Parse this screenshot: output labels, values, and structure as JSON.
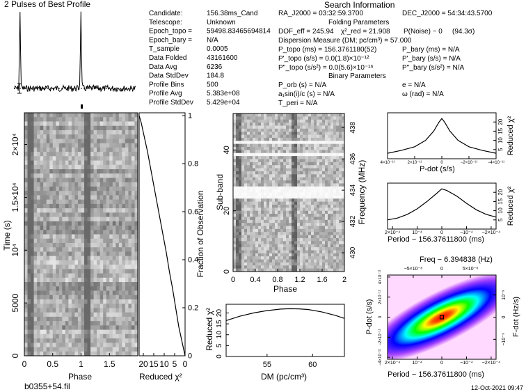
{
  "title": "2 Pulses of Best Profile",
  "search_title": "Search Information",
  "footer_left": "b0355+54.fil",
  "footer_right": "12-Oct-2021 09:47",
  "info_left": [
    {
      "label": "Candidate:",
      "value": "156.38ms_Cand"
    },
    {
      "label": "Telescope:",
      "value": "Unknown"
    },
    {
      "label": "Epoch_topo =",
      "value": "59498.83465694814"
    },
    {
      "label": "Epoch_bary =",
      "value": "N/A"
    },
    {
      "label": "T_sample",
      "value": "0.0005"
    },
    {
      "label": "Data Folded",
      "value": "43161600"
    },
    {
      "label": "Data Avg",
      "value": "6236"
    },
    {
      "label": "Data StdDev",
      "value": "184.8"
    },
    {
      "label": "Profile Bins",
      "value": "500"
    },
    {
      "label": "Profile Avg",
      "value": "5.383e+08"
    },
    {
      "label": "Profile StdDev",
      "value": "5.429e+04"
    }
  ],
  "info_right": {
    "ra": "RA_J2000 = 03:32:59.3700",
    "dec": "DEC_J2000 = 54:34:43.5700",
    "folding_header": "Folding Parameters",
    "dof": "DOF_eff = 245.94",
    "chi_red": "χ²_red = 21.908",
    "pnoise": "P(Noise) ~ 0",
    "sigma": "(94.3σ)",
    "dm": "Dispersion Measure (DM; pc/cm³) = 57.000",
    "p_topo": "P_topo (ms) = 156.3761180(52)",
    "p_bary": "P_bary (ms) = N/A",
    "pdot_topo": "P'_topo (s/s) = 0.0(1.8)×10⁻¹²",
    "pdot_bary": "P'_bary (s/s) = N/A",
    "pddot_topo": "P''_topo (s/s²) = 0.0(5.6)×10⁻¹⁶",
    "pddot_bary": "P''_bary (s/s²) = N/A",
    "binary_header": "Binary Parameters",
    "porb": "P_orb (s) = N/A",
    "ecc": "e = N/A",
    "asini": "a₁sin(i)/c (s) = N/A",
    "omega": "ω (rad) = N/A",
    "tperi": "T_peri = N/A"
  },
  "chart_data": [
    {
      "id": "profile",
      "type": "line",
      "title": "2 Pulses of Best Profile",
      "x_range": [
        0,
        2
      ],
      "peaks_at_phase": [
        0.1,
        1.1
      ],
      "grid": false
    },
    {
      "id": "time_phase",
      "type": "heatmap",
      "xlabel": "Phase",
      "ylabel": "Time (s)",
      "x_ticks": [
        "0",
        "0.5",
        "1",
        "1.5"
      ],
      "x_tick_values": [
        0,
        0.5,
        1,
        1.5
      ],
      "y_ticks": [
        "0",
        "5000",
        "10⁴",
        "1.5×10⁴",
        "2×10⁴"
      ],
      "y_tick_values": [
        0,
        5000,
        10000,
        15000,
        20000
      ],
      "x_range": [
        0,
        2
      ],
      "y_range": [
        0,
        23000
      ]
    },
    {
      "id": "time_chi2",
      "type": "line",
      "xlabel": "Reduced χ²",
      "ylabel": "Fraction of Observation",
      "x_ticks": [
        "20",
        "15",
        "10",
        "5",
        "0"
      ],
      "x_tick_values": [
        20,
        15,
        10,
        5,
        0
      ],
      "y_ticks": [
        "0",
        "0.2",
        "0.4",
        "0.6",
        "0.8",
        "1"
      ],
      "y_tick_values": [
        0,
        0.2,
        0.4,
        0.6,
        0.8,
        1.0
      ],
      "x_range": [
        22,
        0
      ],
      "y_range": [
        0,
        1
      ],
      "x": [
        0,
        1.5,
        3,
        4.5,
        6,
        7.5,
        9,
        10.5,
        12,
        13.5,
        15,
        16.5,
        18,
        19.5,
        21,
        22
      ],
      "y": [
        0,
        0.06,
        0.12,
        0.2,
        0.28,
        0.35,
        0.43,
        0.5,
        0.57,
        0.64,
        0.71,
        0.78,
        0.85,
        0.91,
        0.97,
        1.0
      ]
    },
    {
      "id": "subband_phase",
      "type": "heatmap",
      "xlabel": "Phase",
      "ylabel": "Sub-band",
      "y2label": "Frequency (MHz)",
      "x_ticks": [
        "0",
        "0.4",
        "0.8",
        "1.2",
        "1.6",
        "2"
      ],
      "x_tick_values": [
        0,
        0.4,
        0.8,
        1.2,
        1.6,
        2
      ],
      "y_ticks": [
        "0",
        "20",
        "40"
      ],
      "y_tick_values": [
        0,
        20,
        40
      ],
      "y2_ticks": [
        "430",
        "432",
        "434",
        "436",
        "438"
      ],
      "y2_tick_values": [
        430,
        432,
        434,
        436,
        438
      ],
      "x_range": [
        0,
        2
      ],
      "y_range": [
        0,
        52
      ],
      "y2_range": [
        428.8,
        438.9
      ]
    },
    {
      "id": "dm_chi2",
      "type": "line",
      "xlabel": "DM (pc/cm³)",
      "ylabel": "Reduced χ²",
      "x_ticks": [
        "55",
        "60"
      ],
      "x_tick_values": [
        55,
        60
      ],
      "y_ticks": [
        "0",
        "5",
        "10",
        "15",
        "20"
      ],
      "y_tick_values": [
        0,
        5,
        10,
        15,
        20
      ],
      "x_range": [
        50.5,
        63.5
      ],
      "y_range": [
        0,
        24
      ],
      "x": [
        50.5,
        52,
        53.5,
        55,
        56.5,
        57.5,
        58.5,
        59.5,
        61,
        62.5,
        63.5
      ],
      "y": [
        16.5,
        18.5,
        20.0,
        21.1,
        21.8,
        21.95,
        21.9,
        21.6,
        20.5,
        18.9,
        17.5
      ]
    },
    {
      "id": "pdot_chi2",
      "type": "line",
      "xlabel": "P-dot (s/s)",
      "ylabel": "Reduced χ²",
      "x_ticks": [
        "4×10⁻¹¹",
        "2×10⁻¹¹",
        "0",
        "−2×10⁻¹¹",
        "−4×10⁻¹¹"
      ],
      "x_tick_values": [
        40,
        20,
        0,
        -20,
        -40
      ],
      "y_ticks": [
        "5",
        "10",
        "15",
        "20"
      ],
      "y_tick_values": [
        5,
        10,
        15,
        20
      ],
      "x_range": [
        40,
        -40
      ],
      "y_range": [
        0,
        25
      ],
      "x": [
        40,
        30,
        20,
        12,
        6,
        2,
        0,
        -2,
        -6,
        -12,
        -20,
        -30,
        -40
      ],
      "y": [
        3,
        4.5,
        6.5,
        10,
        15,
        20,
        21.9,
        20,
        15,
        10,
        6.5,
        4.5,
        3
      ]
    },
    {
      "id": "period_chi2",
      "type": "line",
      "xlabel": "Period − 156.37611800 (ms)",
      "ylabel": "Reduced χ²",
      "x_ticks": [
        "2×10⁻⁴",
        "10⁻⁴",
        "0",
        "−10⁻⁴",
        "−2×10⁻⁴"
      ],
      "x_tick_values": [
        2,
        1,
        0,
        -1,
        -2
      ],
      "y_ticks": [
        "5",
        "10",
        "15",
        "20"
      ],
      "y_tick_values": [
        5,
        10,
        15,
        20
      ],
      "x_range": [
        2.2,
        -2.2
      ],
      "y_range": [
        0,
        25
      ],
      "x": [
        2.2,
        1.8,
        1.4,
        1.0,
        0.6,
        0.2,
        0,
        -0.2,
        -0.6,
        -1.0,
        -1.4,
        -1.8,
        -2.2
      ],
      "y": [
        5,
        6,
        8,
        11,
        15,
        19.5,
        21.9,
        21,
        18,
        14,
        10.5,
        8,
        6.5
      ]
    },
    {
      "id": "p_pdot_plane",
      "type": "heatmap",
      "title": "Freq − 6.394838 (Hz)",
      "xlabel": "Period − 156.37611800 (ms)",
      "ylabel": "P-dot (s/s)",
      "y2label": "F-dot (Hz/s)",
      "x_ticks": [
        "2×10⁻⁴",
        "10⁻⁴",
        "0",
        "−10⁻⁴",
        "−2×10⁻⁴"
      ],
      "x_tick_values": [
        2,
        1,
        0,
        -1,
        -2
      ],
      "x2_ticks": [
        "−5×10⁻⁸",
        "0",
        "5×10⁻⁸"
      ],
      "x2_tick_values": [
        -5,
        0,
        5
      ],
      "y_ticks": [
        "−4×10⁻¹¹",
        "−2×10⁻¹¹",
        "0",
        "2×10⁻¹¹",
        "4×10⁻¹¹"
      ],
      "y_tick_values": [
        -4,
        -2,
        0,
        2,
        4
      ],
      "y2_ticks": [
        "−10⁻⁹",
        "0",
        "10⁻⁹"
      ],
      "y2_tick_values": [
        -1,
        0,
        1
      ],
      "x_range": [
        2.2,
        -2.2
      ],
      "y_range": [
        -4.2,
        4.2
      ],
      "peak": [
        0,
        0
      ],
      "colors": [
        "#ff00ff",
        "#0000ff",
        "#00ffff",
        "#00ff00",
        "#ffff00",
        "#ff0000"
      ]
    }
  ]
}
